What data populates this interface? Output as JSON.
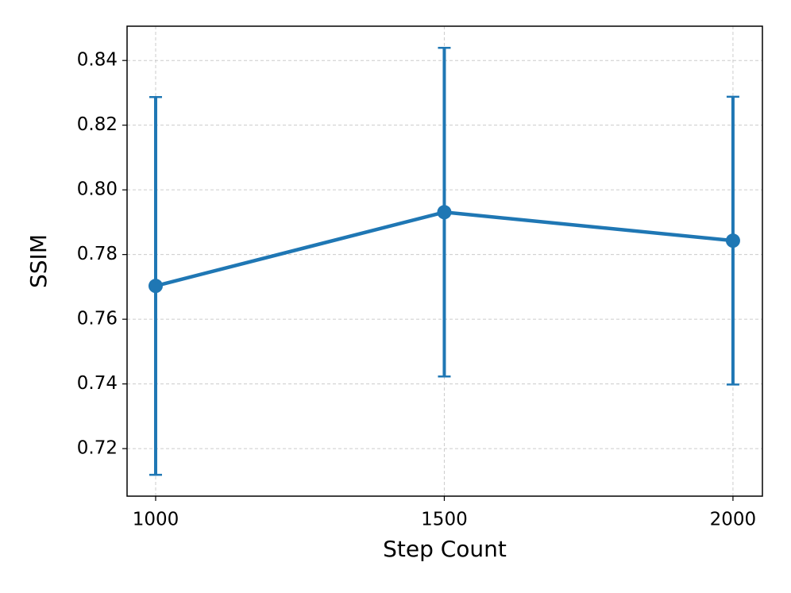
{
  "chart_data": {
    "type": "line",
    "x_label": "Step Count",
    "y_label": "SSIM",
    "x": [
      1000,
      1500,
      2000
    ],
    "series": [
      {
        "color": "#1f77b4",
        "values": [
          0.7703,
          0.7931,
          0.7843
        ],
        "errors": [
          0.0584,
          0.0508,
          0.0445
        ]
      }
    ],
    "xlim": [
      950.5,
      2051
    ],
    "ylim": [
      0.7053,
      0.8506
    ],
    "xticks": [
      1000,
      1500,
      2000
    ],
    "yticks": [
      0.72,
      0.74,
      0.76,
      0.78,
      {
        "value": 0.8,
        "label": "0.80"
      },
      0.82,
      0.84
    ],
    "grid": true
  }
}
